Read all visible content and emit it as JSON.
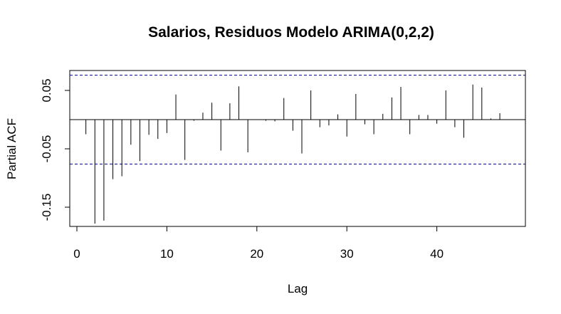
{
  "chart_data": {
    "type": "bar",
    "title": "Salarios, Residuos Modelo ARIMA(0,2,2)",
    "xlabel": "Lag",
    "ylabel": "Partial ACF",
    "xlim": [
      0,
      49
    ],
    "ylim": [
      -0.185,
      0.083
    ],
    "x_ticks": [
      0,
      10,
      20,
      30,
      40
    ],
    "y_ticks": [
      -0.15,
      -0.05,
      0.05
    ],
    "y_tick_labels": [
      "-0.15",
      "-0.05",
      "0.05"
    ],
    "confidence_limit": 0.076,
    "confidence_color": "#00008b",
    "grid": false,
    "lags": [
      1,
      2,
      3,
      4,
      5,
      6,
      7,
      8,
      9,
      10,
      11,
      12,
      13,
      14,
      15,
      16,
      17,
      18,
      19,
      20,
      21,
      22,
      23,
      24,
      25,
      26,
      27,
      28,
      29,
      30,
      31,
      32,
      33,
      34,
      35,
      36,
      37,
      38,
      39,
      40,
      41,
      42,
      43,
      44,
      45,
      46,
      47
    ],
    "values": [
      -0.025,
      -0.178,
      -0.173,
      -0.102,
      -0.097,
      -0.043,
      -0.071,
      -0.026,
      -0.033,
      -0.023,
      0.043,
      -0.069,
      -0.002,
      0.012,
      0.029,
      -0.053,
      0.028,
      0.057,
      -0.056,
      0.0,
      -0.002,
      -0.003,
      0.037,
      -0.019,
      -0.058,
      0.05,
      -0.013,
      -0.01,
      0.009,
      -0.029,
      0.044,
      -0.008,
      -0.025,
      0.01,
      0.038,
      0.056,
      -0.025,
      0.008,
      0.008,
      -0.007,
      0.05,
      -0.013,
      -0.031,
      0.06,
      0.055,
      0.002,
      0.011
    ]
  }
}
